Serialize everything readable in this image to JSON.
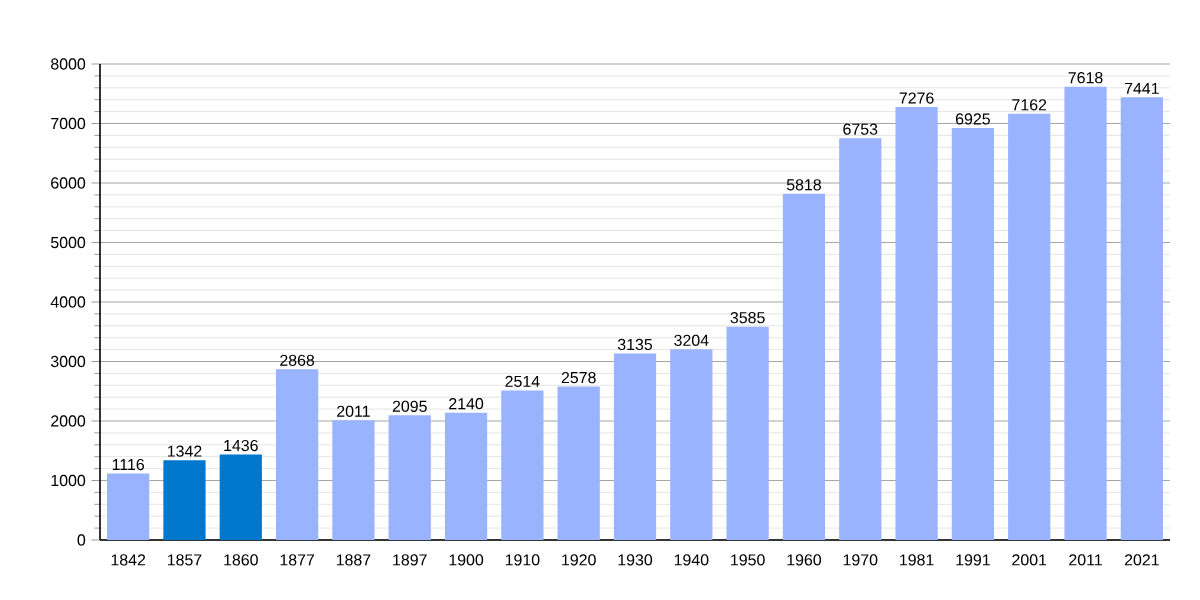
{
  "chart_data": {
    "type": "bar",
    "categories": [
      "1842",
      "1857",
      "1860",
      "1877",
      "1887",
      "1897",
      "1900",
      "1910",
      "1920",
      "1930",
      "1940",
      "1950",
      "1960",
      "1970",
      "1981",
      "1991",
      "2001",
      "2011",
      "2021"
    ],
    "values": [
      1116,
      1342,
      1436,
      2868,
      2011,
      2095,
      2140,
      2514,
      2578,
      3135,
      3204,
      3585,
      5818,
      6753,
      7276,
      6925,
      7162,
      7618,
      7441
    ],
    "colors": [
      "#99b3ff",
      "#0077cc",
      "#0077cc",
      "#99b3ff",
      "#99b3ff",
      "#99b3ff",
      "#99b3ff",
      "#99b3ff",
      "#99b3ff",
      "#99b3ff",
      "#99b3ff",
      "#99b3ff",
      "#99b3ff",
      "#99b3ff",
      "#99b3ff",
      "#99b3ff",
      "#99b3ff",
      "#99b3ff",
      "#99b3ff"
    ],
    "ylim": [
      0,
      8000
    ],
    "yticks": [
      0,
      1000,
      2000,
      3000,
      4000,
      5000,
      6000,
      7000,
      8000
    ],
    "grid": "y",
    "data_labels": true
  }
}
